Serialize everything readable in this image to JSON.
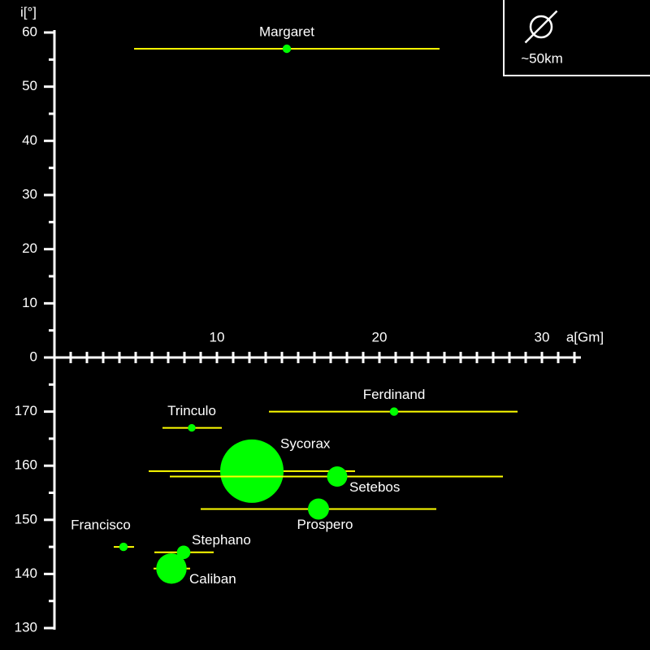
{
  "chart_data": [
    {
      "type": "scatter",
      "x_label": "a[Gm]",
      "y_label": "i[°]",
      "xlim": [
        0,
        32
      ],
      "xticks": [
        10,
        20,
        30
      ],
      "xminorticks": [
        1,
        2,
        3,
        4,
        5,
        6,
        7,
        8,
        9,
        10,
        11,
        12,
        13,
        14,
        15,
        16,
        17,
        18,
        19,
        20,
        21,
        22,
        23,
        24,
        25,
        26,
        27,
        28,
        29,
        30,
        31,
        32
      ],
      "ylim": [
        0,
        60
      ],
      "yticks": [
        0,
        10,
        20,
        30,
        40,
        50,
        60
      ],
      "yminorticks": [
        5,
        15,
        25,
        35,
        45,
        55
      ],
      "point_color": "#00ff00",
      "range_color": "#ffff00",
      "size_legend": {
        "value": 50,
        "label": "~50km"
      },
      "moons": [
        {
          "name": "Margaret",
          "a": 14.3,
          "i": 57,
          "peri": 4.9,
          "apo": 23.7,
          "diameter": 20
        }
      ]
    },
    {
      "type": "scatter",
      "xlim": [
        0,
        32
      ],
      "ylim": [
        180,
        130
      ],
      "yticks": [
        130,
        140,
        150,
        160,
        170
      ],
      "yminorticks": [
        135,
        145,
        155,
        165,
        175
      ],
      "point_color": "#00ff00",
      "range_color": "#ffff00",
      "moons": [
        {
          "name": "Ferdinand",
          "a": 20.9,
          "i": 170,
          "peri": 13.2,
          "apo": 28.5,
          "diameter": 20
        },
        {
          "name": "Trinculo",
          "a": 8.45,
          "i": 167,
          "peri": 6.65,
          "apo": 10.3,
          "diameter": 18
        },
        {
          "name": "Sycorax",
          "a": 12.15,
          "i": 159,
          "peri": 5.8,
          "apo": 18.5,
          "diameter": 150
        },
        {
          "name": "Setebos",
          "a": 17.4,
          "i": 158,
          "peri": 7.1,
          "apo": 27.6,
          "diameter": 48
        },
        {
          "name": "Prospero",
          "a": 16.25,
          "i": 152,
          "peri": 9.0,
          "apo": 23.5,
          "diameter": 50
        },
        {
          "name": "Francisco",
          "a": 4.25,
          "i": 145,
          "peri": 3.65,
          "apo": 4.9,
          "diameter": 20
        },
        {
          "name": "Stephano",
          "a": 7.95,
          "i": 144,
          "peri": 6.15,
          "apo": 9.8,
          "diameter": 32
        },
        {
          "name": "Caliban",
          "a": 7.2,
          "i": 141,
          "peri": 6.1,
          "apo": 8.35,
          "diameter": 72
        }
      ]
    }
  ]
}
